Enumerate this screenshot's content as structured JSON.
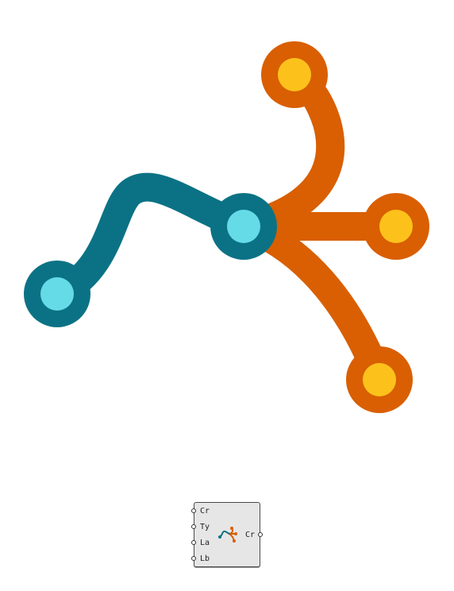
{
  "diagram": {
    "colors": {
      "trunk": "#0b7285",
      "trunk_node_fill": "#66dbe8",
      "branch": "#d95f02",
      "branch_node_fill": "#fcc21b",
      "component_bg": "#e6e6e6",
      "component_border": "#4a4a4a"
    },
    "elements": [
      "trunk-curve",
      "branch-upper",
      "branch-middle",
      "branch-lower",
      "start-node",
      "junction-node",
      "upper-tip-node",
      "middle-tip-node",
      "lower-tip-node"
    ]
  },
  "component": {
    "icon": "curve-branch-icon",
    "inputs": [
      {
        "label": "Cr"
      },
      {
        "label": "Ty"
      },
      {
        "label": "La"
      },
      {
        "label": "Lb"
      }
    ],
    "outputs": [
      {
        "label": "Cr"
      }
    ]
  }
}
